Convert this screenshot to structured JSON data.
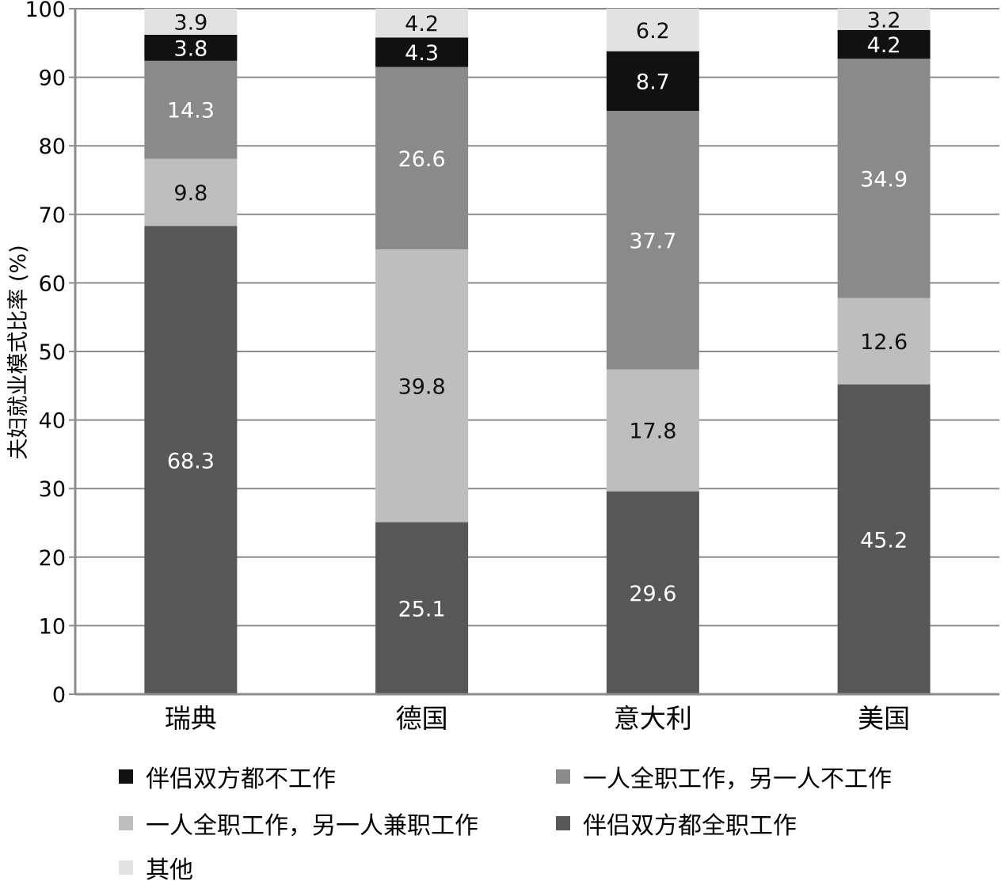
{
  "chart_data": {
    "type": "bar",
    "stacked": true,
    "categories": [
      "瑞典",
      "德国",
      "意大利",
      "美国"
    ],
    "ylabel": "夫妇就业模式比率 (%)",
    "ylim": [
      0,
      100
    ],
    "yticks": [
      0,
      10,
      20,
      30,
      40,
      50,
      60,
      70,
      80,
      90,
      100
    ],
    "grid": true,
    "series": [
      {
        "name": "伴侣双方都全职工作",
        "color": "#575757",
        "label_color": "#ffffff",
        "values": [
          68.3,
          25.1,
          29.6,
          45.2
        ]
      },
      {
        "name": "一人全职工作，另一人兼职工作",
        "color": "#bebebe",
        "label_color": "#111111",
        "values": [
          9.8,
          39.8,
          17.8,
          12.6
        ]
      },
      {
        "name": "一人全职工作，另一人不工作",
        "color": "#8a8a8a",
        "label_color": "#ffffff",
        "values": [
          14.3,
          26.6,
          37.7,
          34.9
        ]
      },
      {
        "name": "伴侣双方都不工作",
        "color": "#111111",
        "label_color": "#ffffff",
        "values": [
          3.8,
          4.3,
          8.7,
          4.2
        ]
      },
      {
        "name": "其他",
        "color": "#e2e2e2",
        "label_color": "#111111",
        "values": [
          3.9,
          4.2,
          6.2,
          3.2
        ]
      }
    ],
    "legend": {
      "position": "bottom",
      "order": [
        "伴侣双方都不工作",
        "一人全职工作，另一人不工作",
        "一人全职工作，另一人兼职工作",
        "伴侣双方都全职工作",
        "其他"
      ]
    }
  }
}
